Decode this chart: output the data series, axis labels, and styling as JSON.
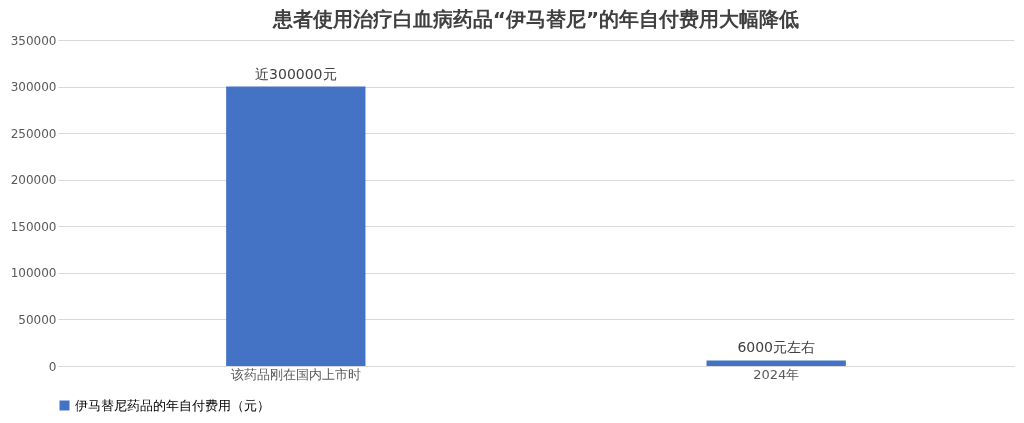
{
  "chart_data": {
    "type": "bar",
    "title": "患者使用治疗白血病药品“伊马替尼”的年自付费用大幅降低",
    "categories": [
      "该药品刚在国内上市时",
      "2024年"
    ],
    "series": [
      {
        "name": "伊马替尼药品的年自付费用（元）",
        "color": "#4472c4",
        "values": [
          300000,
          6000
        ],
        "value_labels": [
          "近300000元",
          "6000元左右"
        ]
      }
    ],
    "ylim": [
      0,
      350000
    ],
    "yticks": [
      0,
      50000,
      100000,
      150000,
      200000,
      250000,
      300000,
      350000
    ],
    "grid": "y",
    "legend": "bottom"
  }
}
